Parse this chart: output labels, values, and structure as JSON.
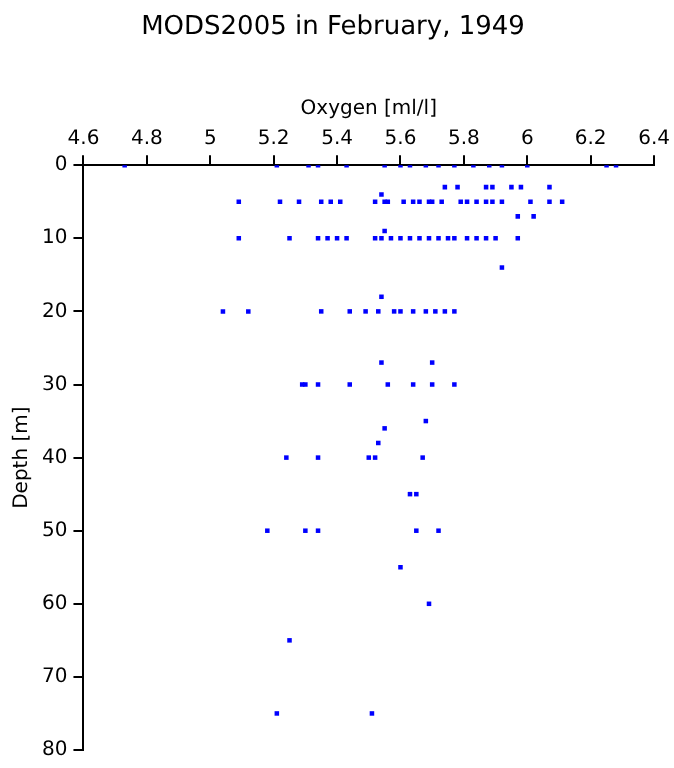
{
  "chart_data": {
    "type": "scatter",
    "title": "MODS2005 in February, 1949",
    "xlabel": "Oxygen [ml/l]",
    "ylabel": "Depth [m]",
    "xlim": [
      4.6,
      6.4
    ],
    "xticks": [
      4.6,
      4.8,
      5,
      5.2,
      5.4,
      5.6,
      5.8,
      6,
      6.2,
      6.4
    ],
    "ylim": [
      80,
      0
    ],
    "yticks": [
      0,
      10,
      20,
      30,
      40,
      50,
      60,
      70,
      80
    ],
    "grid": false,
    "legend": false,
    "marker": "square",
    "series": [
      {
        "color": "#0000ff",
        "x": [
          4.73,
          5.21,
          5.31,
          5.34,
          5.43,
          5.55,
          5.6,
          5.63,
          5.68,
          5.72,
          5.77,
          5.83,
          5.88,
          5.92,
          6.0,
          6.25,
          6.28,
          5.74,
          5.78,
          5.87,
          5.89,
          5.95,
          5.98,
          6.07,
          5.54,
          5.09,
          5.22,
          5.28,
          5.35,
          5.38,
          5.41,
          5.52,
          5.55,
          5.56,
          5.61,
          5.64,
          5.66,
          5.69,
          5.7,
          5.73,
          5.79,
          5.81,
          5.84,
          5.87,
          5.89,
          5.92,
          6.01,
          6.07,
          6.11,
          5.97,
          6.02,
          5.55,
          5.09,
          5.25,
          5.34,
          5.37,
          5.4,
          5.43,
          5.52,
          5.54,
          5.57,
          5.6,
          5.63,
          5.66,
          5.69,
          5.72,
          5.75,
          5.77,
          5.81,
          5.84,
          5.87,
          5.9,
          5.97,
          5.92,
          5.54,
          5.04,
          5.12,
          5.35,
          5.44,
          5.49,
          5.53,
          5.58,
          5.6,
          5.64,
          5.68,
          5.71,
          5.74,
          5.77,
          5.54,
          5.7,
          5.29,
          5.3,
          5.34,
          5.44,
          5.56,
          5.64,
          5.7,
          5.77,
          5.68,
          5.55,
          5.53,
          5.24,
          5.34,
          5.5,
          5.52,
          5.67,
          5.63,
          5.65,
          5.18,
          5.3,
          5.34,
          5.65,
          5.72,
          5.6,
          5.69,
          5.25,
          5.21,
          5.51
        ],
        "values": [
          0,
          0,
          0,
          0,
          0,
          0,
          0,
          0,
          0,
          0,
          0,
          0,
          0,
          0,
          0,
          0,
          0,
          3,
          3,
          3,
          3,
          3,
          3,
          3,
          4,
          5,
          5,
          5,
          5,
          5,
          5,
          5,
          5,
          5,
          5,
          5,
          5,
          5,
          5,
          5,
          5,
          5,
          5,
          5,
          5,
          5,
          5,
          5,
          5,
          7,
          7,
          9,
          10,
          10,
          10,
          10,
          10,
          10,
          10,
          10,
          10,
          10,
          10,
          10,
          10,
          10,
          10,
          10,
          10,
          10,
          10,
          10,
          10,
          14,
          18,
          20,
          20,
          20,
          20,
          20,
          20,
          20,
          20,
          20,
          20,
          20,
          20,
          20,
          27,
          27,
          30,
          30,
          30,
          30,
          30,
          30,
          30,
          30,
          35,
          36,
          38,
          40,
          40,
          40,
          40,
          40,
          45,
          45,
          50,
          50,
          50,
          50,
          50,
          55,
          60,
          65,
          75,
          75
        ]
      }
    ]
  }
}
